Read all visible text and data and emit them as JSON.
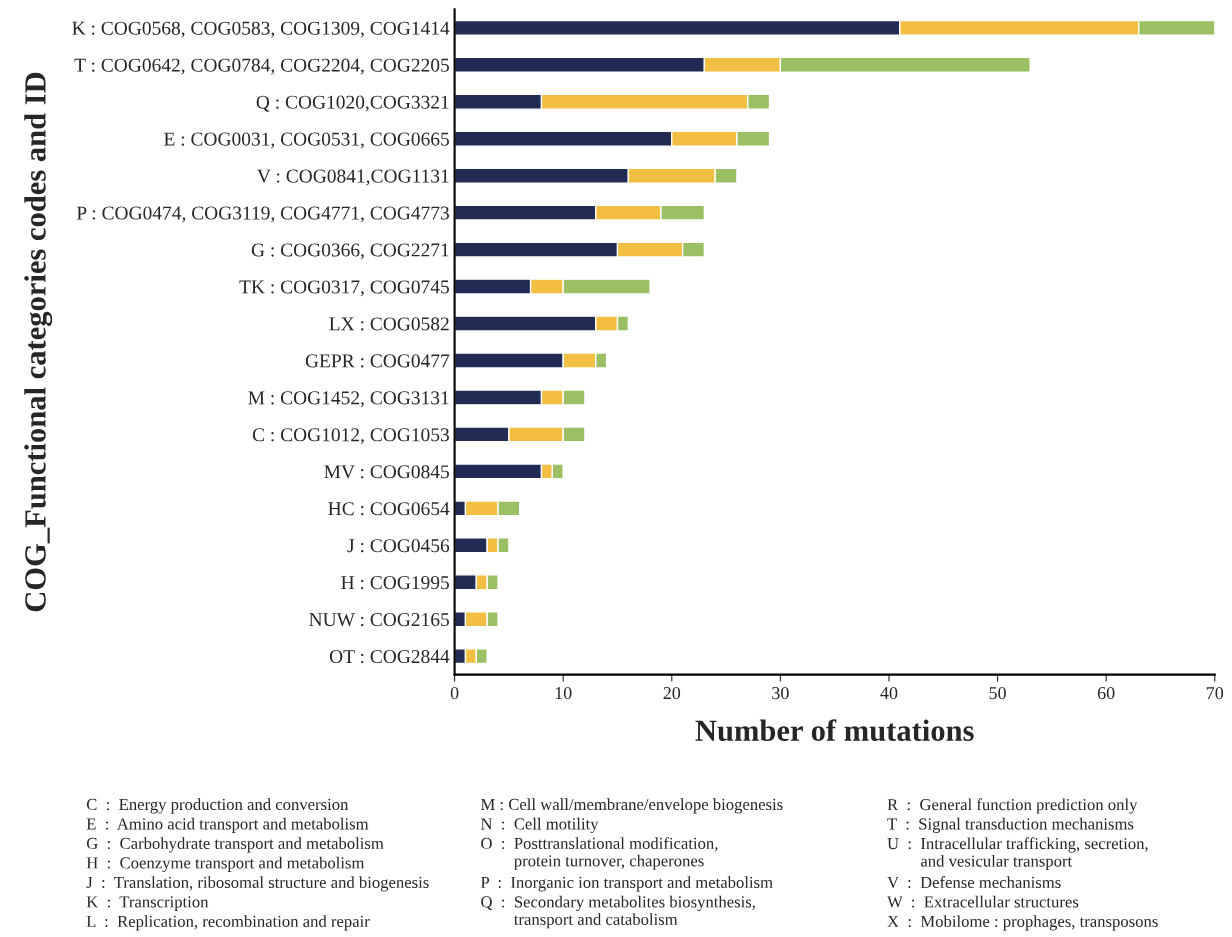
{
  "chart_data": {
    "type": "bar",
    "orientation": "horizontal",
    "stacked": true,
    "xlabel": "Number of mutations",
    "ylabel": "COG_Functional categories codes and ID",
    "categories": [
      "K : COG0568, COG0583, COG1309, COG1414",
      "T : COG0642, COG0784, COG2204, COG2205",
      "Q : COG1020,COG3321",
      "E : COG0031, COG0531, COG0665",
      "V : COG0841,COG1131",
      "P : COG0474, COG3119, COG4771, COG4773",
      "G : COG0366, COG2271",
      "TK : COG0317, COG0745",
      "LX : COG0582",
      "GEPR : COG0477",
      "M : COG1452, COG3131",
      "C : COG1012, COG1053",
      "MV : COG0845",
      "HC : COG0654",
      "J : COG0456",
      "H : COG1995",
      "NUW : COG2165",
      "OT : COG2844"
    ],
    "series": [
      {
        "color": "#222b54",
        "values": [
          41,
          23,
          8,
          20,
          16,
          13,
          15,
          7,
          13,
          10,
          8,
          5,
          8,
          1,
          3,
          2,
          1,
          1
        ]
      },
      {
        "color": "#f2bf43",
        "values": [
          22,
          7,
          19,
          6,
          8,
          6,
          6,
          3,
          2,
          3,
          2,
          5,
          1,
          3,
          1,
          1,
          2,
          1
        ]
      },
      {
        "color": "#9bbf63",
        "values": [
          7,
          23,
          2,
          3,
          2,
          4,
          2,
          8,
          1,
          1,
          2,
          2,
          1,
          2,
          1,
          1,
          1,
          1
        ]
      }
    ],
    "xlim": [
      0,
      70
    ],
    "xticks": [
      0,
      10,
      20,
      30,
      40,
      50,
      60,
      70
    ],
    "grid": false,
    "legend": false,
    "annotations": [
      "C  :  Energy production and conversion",
      "E  :  Amino acid transport and metabolism",
      "G  :  Carbohydrate transport and metabolism",
      "H  :  Coenzyme transport and metabolism",
      "J  :  Translation, ribosomal structure and biogenesis",
      "K  :  Transcription",
      "L  :  Replication, recombination and repair",
      "M : Cell wall/membrane/envelope biogenesis",
      "N  :  Cell motility",
      "O  :  Posttranslational modification,\n        protein turnover, chaperones",
      "P  :  Inorganic ion transport and metabolism",
      "Q  :  Secondary metabolites biosynthesis,\n        transport and catabolism",
      "R  :  General function prediction only",
      "T  :  Signal transduction mechanisms",
      "U  :  Intracellular trafficking, secretion,\n        and vesicular transport",
      "V  :  Defense mechanisms",
      "W  :  Extracellular structures",
      "X  :  Mobilome : prophages, transposons"
    ]
  }
}
